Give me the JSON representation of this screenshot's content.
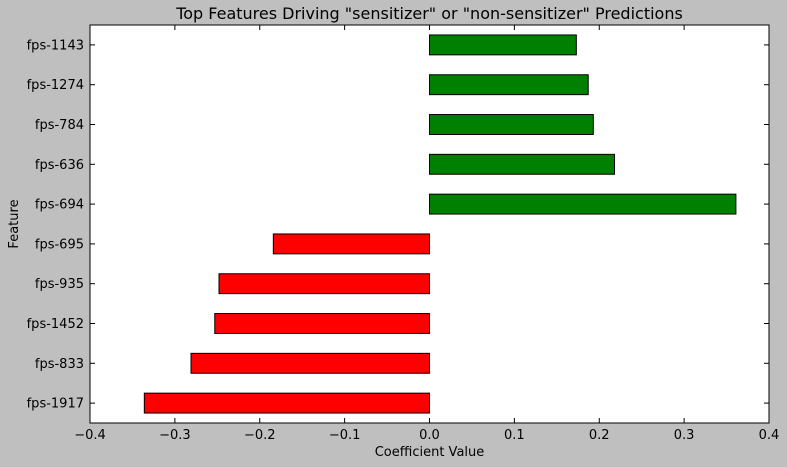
{
  "chart_data": {
    "type": "bar",
    "orientation": "horizontal",
    "title": "Top Features Driving \"sensitizer\" or \"non-sensitizer\" Predictions",
    "xlabel": "Coefficient Value",
    "ylabel": "Feature",
    "xlim": [
      -0.4,
      0.4
    ],
    "xticks": [
      -0.4,
      -0.3,
      -0.2,
      -0.1,
      0.0,
      0.1,
      0.2,
      0.3,
      0.4
    ],
    "xtick_labels": [
      "−0.4",
      "−0.3",
      "−0.2",
      "−0.1",
      "0.0",
      "0.1",
      "0.2",
      "0.3",
      "0.4"
    ],
    "categories": [
      "fps-1143",
      "fps-1274",
      "fps-784",
      "fps-636",
      "fps-694",
      "fps-695",
      "fps-935",
      "fps-1452",
      "fps-833",
      "fps-1917"
    ],
    "values": [
      0.173,
      0.187,
      0.193,
      0.218,
      0.361,
      -0.184,
      -0.248,
      -0.253,
      -0.281,
      -0.336
    ],
    "colors": {
      "positive": "#008000",
      "negative": "#ff0000",
      "background": "#bfbfbf",
      "plot_area": "#ffffff",
      "edge": "#000000"
    },
    "grid": false,
    "legend": "none"
  }
}
